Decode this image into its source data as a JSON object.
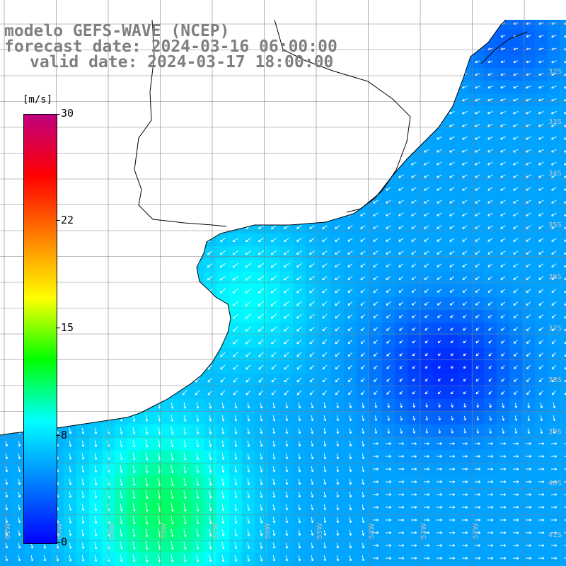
{
  "title": {
    "line1": "modelo GEFS-WAVE (NCEP)",
    "line2": "forecast date: 2024-03-16 06:00:00",
    "line3": "valid date: 2024-03-17 18:00:00"
  },
  "colorbar": {
    "units": "[m/s]",
    "labels": [
      "30",
      "22",
      "15",
      "8",
      "0"
    ],
    "values": [
      30,
      22,
      15,
      8,
      0
    ],
    "colors": [
      "#0000ff",
      "#0080ff",
      "#00ffff",
      "#00ff00",
      "#ffff00",
      "#ff8000",
      "#ff0000",
      "#c00080"
    ]
  },
  "grid": {
    "lat_labels": [
      "32S",
      "33S",
      "34S",
      "35S",
      "36S",
      "37S",
      "38S",
      "39S",
      "40S",
      "41S"
    ],
    "lon_labels": [
      "61W",
      "60W",
      "59W",
      "58W",
      "57W",
      "56W",
      "55W",
      "54W",
      "53W",
      "52W"
    ]
  },
  "colors": {
    "land": "#ffffff",
    "coast": "#000000",
    "grid": "#808080",
    "title": "#7f7f7f",
    "arrow": "#ffffff"
  }
}
